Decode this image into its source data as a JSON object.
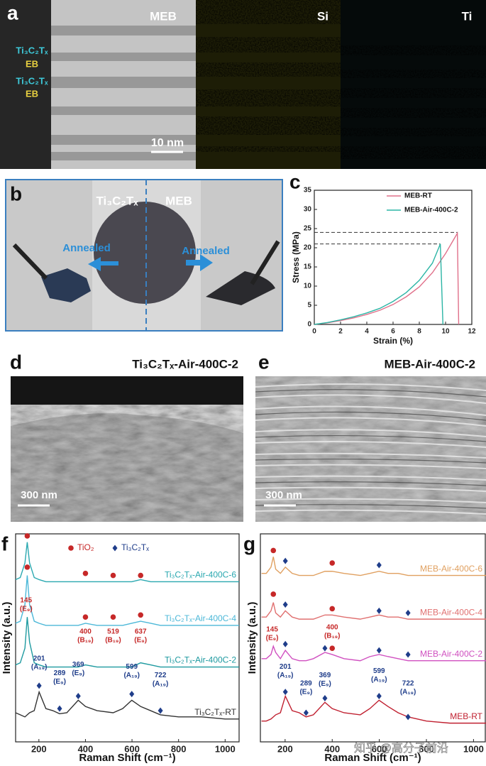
{
  "panel_a": {
    "label": "a",
    "side_labels": [
      "Ti₃C₂Tₓ",
      "EB",
      "Ti₃C₂Tₓ",
      "EB"
    ],
    "maps": [
      "MEB",
      "Si",
      "Ti"
    ],
    "scale_bar": "10 nm"
  },
  "panel_b": {
    "label": "b",
    "left": "Ti₃C₂Tₓ",
    "right": "MEB",
    "arrows": [
      "Annealed",
      "Annealed"
    ]
  },
  "panel_c": {
    "label": "c",
    "type": "line",
    "xlabel": "Strain (%)",
    "ylabel": "Stress (MPa)",
    "xlim": [
      0,
      12
    ],
    "ylim": [
      0,
      35
    ],
    "xticks": [
      0,
      2,
      4,
      6,
      8,
      10,
      12
    ],
    "yticks": [
      0,
      5,
      10,
      15,
      20,
      25,
      30,
      35
    ],
    "series": [
      {
        "name": "MEB-RT",
        "color": "#e0708a",
        "x": [
          0,
          1,
          2,
          3,
          4,
          5,
          6,
          7,
          8,
          9,
          10,
          10.9,
          11.0
        ],
        "values": [
          0,
          0.4,
          1,
          1.7,
          2.6,
          3.7,
          5.2,
          7.2,
          9.8,
          13.5,
          18.5,
          23.8,
          0
        ]
      },
      {
        "name": "MEB-Air-400C-2",
        "color": "#2bb5a5",
        "x": [
          0,
          1,
          2,
          3,
          4,
          5,
          6,
          7,
          8,
          9,
          9.6,
          9.8
        ],
        "values": [
          0,
          0.5,
          1.2,
          2,
          3,
          4.2,
          6,
          8.3,
          11.5,
          16,
          21,
          0
        ]
      }
    ],
    "reference_lines": [
      [
        10.9,
        24
      ],
      [
        9.6,
        21
      ]
    ],
    "legend": "top-right"
  },
  "panel_d": {
    "label": "d",
    "title": "Ti₃C₂Tₓ-Air-400C-2",
    "scale_bar": "300 nm"
  },
  "panel_e": {
    "label": "e",
    "title": "MEB-Air-400C-2",
    "scale_bar": "300 nm"
  },
  "panel_f": {
    "label": "f",
    "type": "line",
    "xlabel": "Raman Shift (cm⁻¹)",
    "ylabel": "Intensity (a.u.)",
    "xlim": [
      100,
      1060
    ],
    "ylim": [
      0,
      100
    ],
    "xticks": [
      200,
      400,
      600,
      800,
      1000
    ],
    "x": [
      100,
      120,
      140,
      150,
      160,
      180,
      201,
      230,
      260,
      289,
      320,
      369,
      400,
      450,
      519,
      560,
      599,
      637,
      680,
      722,
      800,
      900,
      1000,
      1060
    ],
    "series": [
      {
        "name": "Ti₃C₂Tₓ-Air-400C-6",
        "color": "#2aa8b0",
        "values": [
          78,
          79,
          86,
          96,
          86,
          79,
          78,
          77,
          77,
          77,
          77,
          77,
          77,
          77,
          77,
          77,
          77,
          78,
          77,
          77,
          77,
          77,
          77,
          77
        ]
      },
      {
        "name": "Ti₃C₂Tₓ-Air-400C-4",
        "color": "#4cb8d8",
        "values": [
          57,
          58,
          66,
          80,
          66,
          58,
          57,
          56,
          56,
          56,
          56,
          56,
          57,
          56,
          56,
          56,
          57,
          58,
          57,
          56,
          56,
          56,
          56,
          56
        ]
      },
      {
        "name": "Ti₃C₂Tₓ-Air-400C-2",
        "color": "#1e9aa0",
        "values": [
          37,
          38,
          45,
          60,
          48,
          38,
          37,
          36,
          36,
          36,
          36,
          36,
          37,
          36,
          36,
          36,
          36,
          38,
          37,
          36,
          36,
          36,
          36,
          36
        ]
      },
      {
        "name": "Ti₃C₂Tₓ-RT",
        "color": "#333333",
        "values": [
          14,
          13,
          12,
          13,
          14,
          15,
          24,
          16,
          15,
          13.5,
          14,
          20,
          17,
          15,
          14,
          16,
          20,
          17,
          15,
          13,
          12,
          12,
          11,
          11
        ]
      }
    ],
    "legend": [
      "TiO₂",
      "Ti₃C₂Tₓ"
    ],
    "circle_color": "#c62828",
    "diamond_color": "#1f3d8a",
    "circles": [
      [
        150,
        99
      ],
      [
        400,
        81
      ],
      [
        519,
        80
      ],
      [
        637,
        80
      ],
      [
        150,
        84
      ],
      [
        400,
        60
      ],
      [
        519,
        60
      ],
      [
        637,
        61
      ]
    ],
    "diamonds": [
      [
        201,
        27
      ],
      [
        289,
        16
      ],
      [
        369,
        22
      ],
      [
        599,
        23
      ],
      [
        722,
        15
      ]
    ],
    "peak_labels": [
      {
        "x": 145,
        "y": 68,
        "color": "#c62828",
        "text": [
          "145",
          "(E₉)"
        ]
      },
      {
        "x": 400,
        "y": 53,
        "color": "#c62828",
        "text": [
          "400",
          "(B₁₉)"
        ]
      },
      {
        "x": 519,
        "y": 53,
        "color": "#c62828",
        "text": [
          "519",
          "(B₁₉)"
        ]
      },
      {
        "x": 637,
        "y": 53,
        "color": "#c62828",
        "text": [
          "637",
          "(E₉)"
        ]
      },
      {
        "x": 201,
        "y": 40,
        "color": "#1f3d8a",
        "text": [
          "201",
          "(A₁₉)"
        ]
      },
      {
        "x": 289,
        "y": 33,
        "color": "#1f3d8a",
        "text": [
          "289",
          "(E₉)"
        ]
      },
      {
        "x": 369,
        "y": 37,
        "color": "#1f3d8a",
        "text": [
          "369",
          "(E₉)"
        ]
      },
      {
        "x": 599,
        "y": 36,
        "color": "#1f3d8a",
        "text": [
          "599",
          "(A₁₉)"
        ]
      },
      {
        "x": 722,
        "y": 32,
        "color": "#1f3d8a",
        "text": [
          "722",
          "(A₁₉)"
        ]
      }
    ]
  },
  "panel_g": {
    "label": "g",
    "type": "line",
    "xlabel": "Raman Shift (cm⁻¹)",
    "ylabel": "Intensity (a.u.)",
    "xlim": [
      95,
      1050
    ],
    "ylim": [
      0,
      100
    ],
    "xticks": [
      200,
      400,
      600,
      800,
      1000
    ],
    "x": [
      100,
      120,
      140,
      150,
      160,
      180,
      201,
      230,
      260,
      289,
      320,
      369,
      400,
      450,
      519,
      560,
      599,
      637,
      680,
      722,
      800,
      900,
      1000,
      1060
    ],
    "series": [
      {
        "name": "MEB-Air-400C-6",
        "color": "#e0a060",
        "values": [
          81,
          81,
          84,
          89,
          83,
          81,
          84,
          81,
          80,
          80,
          80,
          82,
          82,
          81,
          80,
          81,
          82,
          81,
          81,
          80,
          80,
          80,
          80,
          80
        ]
      },
      {
        "name": "MEB-Air-400C-4",
        "color": "#e07070",
        "values": [
          60,
          60,
          63,
          67,
          62,
          60,
          63,
          60,
          59,
          59,
          59,
          61,
          61,
          60,
          59,
          60,
          61,
          60,
          60,
          59,
          59,
          59,
          59,
          59
        ]
      },
      {
        "name": "MEB-Air-400C-2",
        "color": "#d050c0",
        "values": [
          40,
          40,
          42,
          46,
          43,
          40,
          44,
          40,
          39,
          39,
          40,
          43,
          42,
          40,
          39,
          41,
          42,
          41,
          40,
          39,
          39,
          39,
          39,
          39
        ]
      },
      {
        "name": "MEB-RT",
        "color": "#c02030",
        "values": [
          10,
          10,
          11,
          12,
          13,
          14,
          22,
          15,
          14,
          12,
          13,
          19,
          16,
          14,
          13,
          16,
          20,
          17,
          14,
          12,
          10,
          9,
          9,
          9
        ]
      }
    ],
    "circle_color": "#c62828",
    "diamond_color": "#1f3d8a",
    "circles": [
      [
        150,
        92
      ],
      [
        400,
        86
      ],
      [
        150,
        71
      ],
      [
        400,
        64
      ],
      [
        400,
        45
      ]
    ],
    "diamonds": [
      [
        201,
        87
      ],
      [
        599,
        85
      ],
      [
        201,
        66
      ],
      [
        599,
        63
      ],
      [
        722,
        62
      ],
      [
        201,
        47
      ],
      [
        369,
        45
      ],
      [
        599,
        44
      ],
      [
        722,
        42
      ],
      [
        201,
        24
      ],
      [
        289,
        14
      ],
      [
        369,
        21
      ],
      [
        599,
        22
      ],
      [
        722,
        12
      ]
    ],
    "peak_labels": [
      {
        "x": 145,
        "y": 54,
        "color": "#c62828",
        "text": [
          "145",
          "(E₉)"
        ]
      },
      {
        "x": 400,
        "y": 55,
        "color": "#c62828",
        "text": [
          "400",
          "(B₁₉)"
        ]
      },
      {
        "x": 201,
        "y": 36,
        "color": "#1f3d8a",
        "text": [
          "201",
          "(A₁₉)"
        ]
      },
      {
        "x": 289,
        "y": 28,
        "color": "#1f3d8a",
        "text": [
          "289",
          "(E₉)"
        ]
      },
      {
        "x": 369,
        "y": 32,
        "color": "#1f3d8a",
        "text": [
          "369",
          "(E₉)"
        ]
      },
      {
        "x": 599,
        "y": 34,
        "color": "#1f3d8a",
        "text": [
          "599",
          "(A₁₉)"
        ]
      },
      {
        "x": 722,
        "y": 28,
        "color": "#1f3d8a",
        "text": [
          "722",
          "(A₁₉)"
        ]
      }
    ],
    "watermark": "知乎 @高分子前沿"
  }
}
